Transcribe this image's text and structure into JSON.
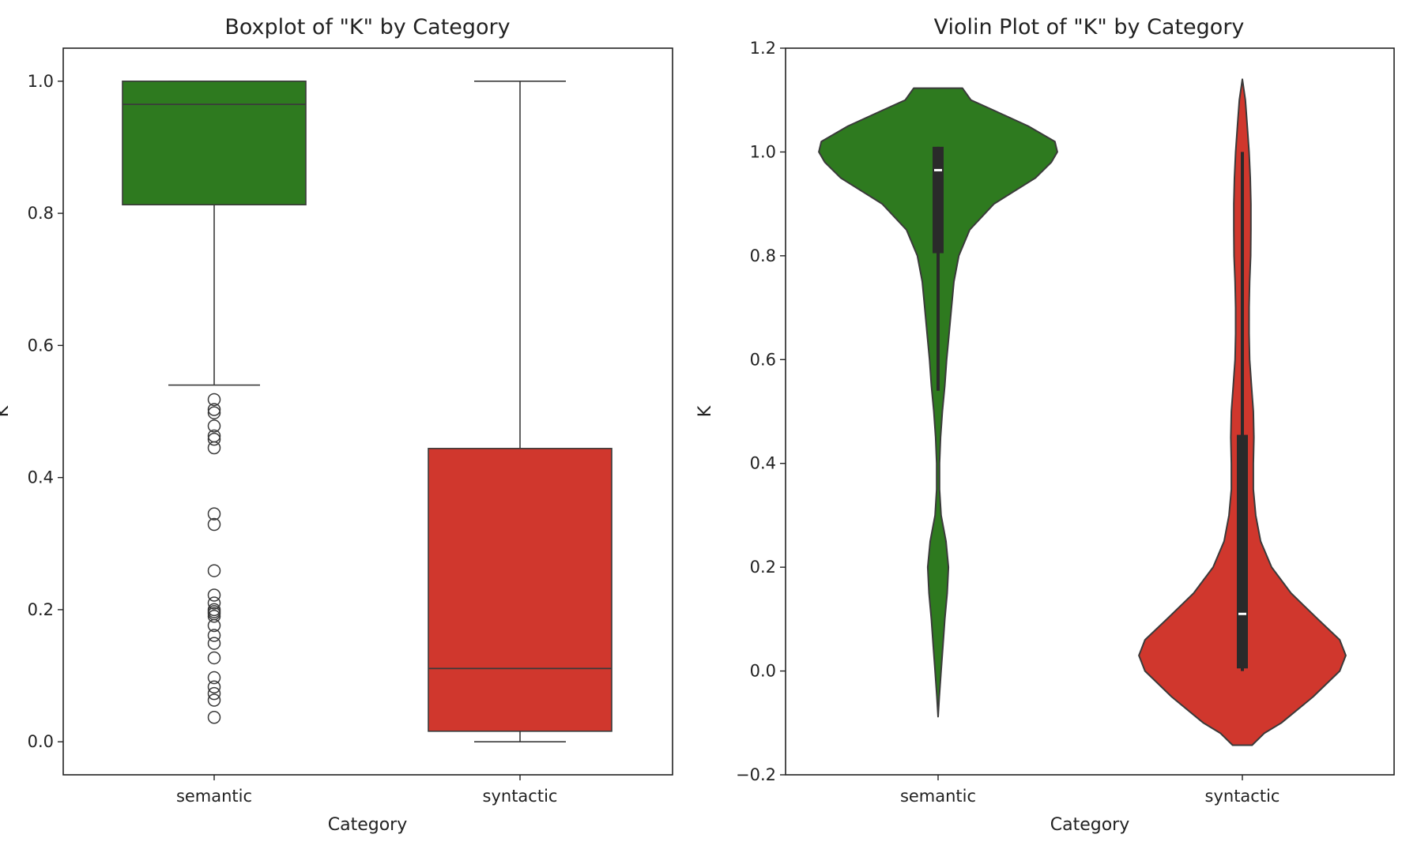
{
  "chart_data": [
    {
      "type": "box",
      "title": "Boxplot of \"K\" by Category",
      "xlabel": "Category",
      "ylabel": "K",
      "categories": [
        "semantic",
        "syntactic"
      ],
      "colors": [
        "#2e7a1f",
        "#d0372d"
      ],
      "ylim": [
        -0.05,
        1.05
      ],
      "yticks": [
        "0.0",
        "0.2",
        "0.4",
        "0.6",
        "0.8",
        "1.0"
      ],
      "boxes": [
        {
          "name": "semantic",
          "whislo": 0.54,
          "q1": 0.813,
          "med": 0.965,
          "q3": 1.0,
          "whishi": 1.0,
          "fliers": [
            0.518,
            0.503,
            0.498,
            0.478,
            0.463,
            0.458,
            0.445,
            0.345,
            0.329,
            0.259,
            0.222,
            0.21,
            0.2,
            0.197,
            0.194,
            0.19,
            0.176,
            0.161,
            0.149,
            0.127,
            0.097,
            0.083,
            0.073,
            0.063,
            0.037
          ]
        },
        {
          "name": "syntactic",
          "whislo": 0.0,
          "q1": 0.016,
          "med": 0.111,
          "q3": 0.444,
          "whishi": 1.0,
          "fliers": []
        }
      ]
    },
    {
      "type": "violin",
      "title": "Violin Plot of \"K\" by Category",
      "xlabel": "Category",
      "ylabel": "K",
      "categories": [
        "semantic",
        "syntactic"
      ],
      "colors": [
        "#2e7a1f",
        "#d0372d"
      ],
      "ylim": [
        -0.2,
        1.2
      ],
      "yticks": [
        "−0.2",
        "0.0",
        "0.2",
        "0.4",
        "0.6",
        "0.8",
        "1.0",
        "1.2"
      ],
      "violins": [
        {
          "name": "semantic",
          "profile": [
            [
              -0.088,
              0.0
            ],
            [
              -0.05,
              0.01
            ],
            [
              0.0,
              0.025
            ],
            [
              0.05,
              0.04
            ],
            [
              0.1,
              0.055
            ],
            [
              0.15,
              0.075
            ],
            [
              0.2,
              0.085
            ],
            [
              0.25,
              0.065
            ],
            [
              0.3,
              0.025
            ],
            [
              0.35,
              0.012
            ],
            [
              0.4,
              0.012
            ],
            [
              0.45,
              0.02
            ],
            [
              0.5,
              0.035
            ],
            [
              0.55,
              0.055
            ],
            [
              0.6,
              0.07
            ],
            [
              0.65,
              0.09
            ],
            [
              0.7,
              0.11
            ],
            [
              0.75,
              0.13
            ],
            [
              0.8,
              0.17
            ],
            [
              0.85,
              0.26
            ],
            [
              0.9,
              0.46
            ],
            [
              0.95,
              0.8
            ],
            [
              0.98,
              0.93
            ],
            [
              1.0,
              0.98
            ],
            [
              1.02,
              0.96
            ],
            [
              1.05,
              0.74
            ],
            [
              1.08,
              0.46
            ],
            [
              1.1,
              0.27
            ],
            [
              1.123,
              0.2
            ]
          ],
          "whislo": 0.54,
          "q1": 0.805,
          "med": 0.965,
          "q3": 1.01,
          "whishi": 1.01
        },
        {
          "name": "syntactic",
          "profile": [
            [
              -0.143,
              0.08
            ],
            [
              -0.12,
              0.18
            ],
            [
              -0.1,
              0.32
            ],
            [
              -0.05,
              0.58
            ],
            [
              0.0,
              0.8
            ],
            [
              0.03,
              0.85
            ],
            [
              0.06,
              0.8
            ],
            [
              0.1,
              0.62
            ],
            [
              0.15,
              0.4
            ],
            [
              0.2,
              0.24
            ],
            [
              0.25,
              0.15
            ],
            [
              0.3,
              0.11
            ],
            [
              0.35,
              0.09
            ],
            [
              0.4,
              0.09
            ],
            [
              0.45,
              0.095
            ],
            [
              0.5,
              0.09
            ],
            [
              0.55,
              0.075
            ],
            [
              0.6,
              0.06
            ],
            [
              0.65,
              0.055
            ],
            [
              0.7,
              0.055
            ],
            [
              0.75,
              0.06
            ],
            [
              0.8,
              0.068
            ],
            [
              0.85,
              0.07
            ],
            [
              0.9,
              0.07
            ],
            [
              0.95,
              0.065
            ],
            [
              1.0,
              0.055
            ],
            [
              1.05,
              0.04
            ],
            [
              1.1,
              0.025
            ],
            [
              1.14,
              0.0
            ]
          ],
          "whislo": 0.0,
          "q1": 0.005,
          "med": 0.11,
          "q3": 0.455,
          "whishi": 1.0
        }
      ]
    }
  ]
}
